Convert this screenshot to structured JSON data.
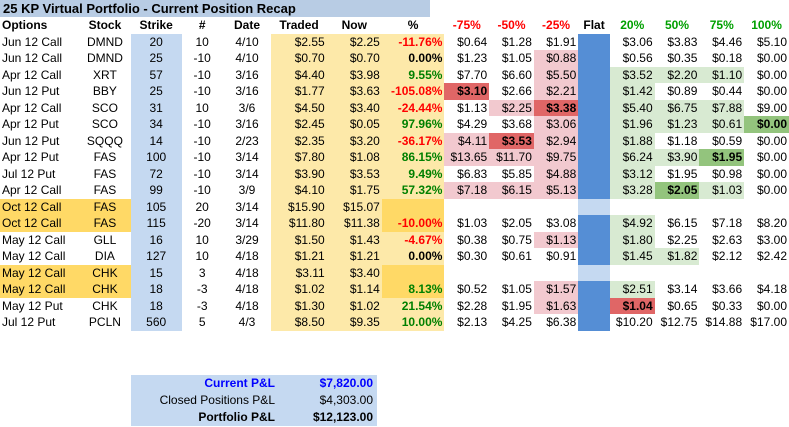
{
  "title": "25 KP Virtual Portfolio - Current Position Recap",
  "headers": [
    "Options",
    "Stock",
    "Strike",
    "#",
    "Date",
    "Traded",
    "Now",
    "%",
    "-75%",
    "-50%",
    "-25%",
    "Flat",
    "20%",
    "50%",
    "75%",
    "100%"
  ],
  "rows": [
    {
      "opt": "Jun 12 Call",
      "stock": "DMND",
      "strike": "20",
      "qty": "10",
      "date": "4/10",
      "traded": "$2.55",
      "now": "$2.25",
      "pct": "-11.76%",
      "m75": "$0.64",
      "m50": "$1.28",
      "m25": "$1.91",
      "p20": "$3.06",
      "p50": "$3.83",
      "p75": "$4.46",
      "p100": "$5.10"
    },
    {
      "opt": "Jun 12 Call",
      "stock": "DMND",
      "strike": "25",
      "qty": "-10",
      "date": "4/10",
      "traded": "$0.70",
      "now": "$0.70",
      "pct": "0.00%",
      "m75": "$1.23",
      "m50": "$1.05",
      "m25": "$0.88",
      "p20": "$0.56",
      "p50": "$0.35",
      "p75": "$0.18",
      "p100": "$0.00"
    },
    {
      "opt": "Apr 12 Call",
      "stock": "XRT",
      "strike": "57",
      "qty": "-10",
      "date": "3/16",
      "traded": "$4.40",
      "now": "$3.98",
      "pct": "9.55%",
      "m75": "$7.70",
      "m50": "$6.60",
      "m25": "$5.50",
      "p20": "$3.52",
      "p50": "$2.20",
      "p75": "$1.10",
      "p100": "$0.00"
    },
    {
      "opt": "Jun 12 Put",
      "stock": "BBY",
      "strike": "25",
      "qty": "-10",
      "date": "3/16",
      "traded": "$1.77",
      "now": "$3.63",
      "pct": "-105.08%",
      "m75": "$3.10",
      "m50": "$2.66",
      "m25": "$2.21",
      "p20": "$1.42",
      "p50": "$0.89",
      "p75": "$0.44",
      "p100": "$0.00"
    },
    {
      "opt": "Apr 12 Call",
      "stock": "SCO",
      "strike": "31",
      "qty": "10",
      "date": "3/6",
      "traded": "$4.50",
      "now": "$3.40",
      "pct": "-24.44%",
      "m75": "$1.13",
      "m50": "$2.25",
      "m25": "$3.38",
      "p20": "$5.40",
      "p50": "$6.75",
      "p75": "$7.88",
      "p100": "$9.00"
    },
    {
      "opt": "Apr 12 Put",
      "stock": "SCO",
      "strike": "34",
      "qty": "-10",
      "date": "3/16",
      "traded": "$2.45",
      "now": "$0.05",
      "pct": "97.96%",
      "m75": "$4.29",
      "m50": "$3.68",
      "m25": "$3.06",
      "p20": "$1.96",
      "p50": "$1.23",
      "p75": "$0.61",
      "p100": "$0.00"
    },
    {
      "opt": "Jun 12 Put",
      "stock": "SQQQ",
      "strike": "14",
      "qty": "-10",
      "date": "2/23",
      "traded": "$2.35",
      "now": "$3.20",
      "pct": "-36.17%",
      "m75": "$4.11",
      "m50": "$3.53",
      "m25": "$2.94",
      "p20": "$1.88",
      "p50": "$1.18",
      "p75": "$0.59",
      "p100": "$0.00"
    },
    {
      "opt": "Apr 12 Put",
      "stock": "FAS",
      "strike": "100",
      "qty": "-10",
      "date": "3/14",
      "traded": "$7.80",
      "now": "$1.08",
      "pct": "86.15%",
      "m75": "$13.65",
      "m50": "$11.70",
      "m25": "$9.75",
      "p20": "$6.24",
      "p50": "$3.90",
      "p75": "$1.95",
      "p100": "$0.00"
    },
    {
      "opt": "Jul 12 Put",
      "stock": "FAS",
      "strike": "72",
      "qty": "-10",
      "date": "3/14",
      "traded": "$3.90",
      "now": "$3.53",
      "pct": "9.49%",
      "m75": "$6.83",
      "m50": "$5.85",
      "m25": "$4.88",
      "p20": "$3.12",
      "p50": "$1.95",
      "p75": "$0.98",
      "p100": "$0.00"
    },
    {
      "opt": "Apr 12 Call",
      "stock": "FAS",
      "strike": "99",
      "qty": "-10",
      "date": "3/9",
      "traded": "$4.10",
      "now": "$1.75",
      "pct": "57.32%",
      "m75": "$7.18",
      "m50": "$6.15",
      "m25": "$5.13",
      "p20": "$3.28",
      "p50": "$2.05",
      "p75": "$1.03",
      "p100": "$0.00"
    },
    {
      "opt": "Oct 12 Call",
      "stock": "FAS",
      "strike": "105",
      "qty": "20",
      "date": "3/14",
      "traded": "$15.90",
      "now": "$15.07",
      "pct": "",
      "m75": "",
      "m50": "",
      "m25": "",
      "p20": "",
      "p50": "",
      "p75": "",
      "p100": ""
    },
    {
      "opt": "Oct 12 Call",
      "stock": "FAS",
      "strike": "115",
      "qty": "-20",
      "date": "3/14",
      "traded": "$11.80",
      "now": "$11.38",
      "pct": "-10.00%",
      "m75": "$1.03",
      "m50": "$2.05",
      "m25": "$3.08",
      "p20": "$4.92",
      "p50": "$6.15",
      "p75": "$7.18",
      "p100": "$8.20"
    },
    {
      "opt": "May 12 Call",
      "stock": "GLL",
      "strike": "16",
      "qty": "10",
      "date": "3/29",
      "traded": "$1.50",
      "now": "$1.43",
      "pct": "-4.67%",
      "m75": "$0.38",
      "m50": "$0.75",
      "m25": "$1.13",
      "p20": "$1.80",
      "p50": "$2.25",
      "p75": "$2.63",
      "p100": "$3.00"
    },
    {
      "opt": "May 12 Call",
      "stock": "DIA",
      "strike": "127",
      "qty": "10",
      "date": "4/18",
      "traded": "$1.21",
      "now": "$1.21",
      "pct": "0.00%",
      "m75": "$0.30",
      "m50": "$0.61",
      "m25": "$0.91",
      "p20": "$1.45",
      "p50": "$1.82",
      "p75": "$2.12",
      "p100": "$2.42"
    },
    {
      "opt": "May 12 Call",
      "stock": "CHK",
      "strike": "15",
      "qty": "3",
      "date": "4/18",
      "traded": "$3.11",
      "now": "$3.40",
      "pct": "",
      "m75": "",
      "m50": "",
      "m25": "",
      "p20": "",
      "p50": "",
      "p75": "",
      "p100": ""
    },
    {
      "opt": "May 12 Call",
      "stock": "CHK",
      "strike": "18",
      "qty": "-3",
      "date": "4/18",
      "traded": "$1.02",
      "now": "$1.14",
      "pct": "8.13%",
      "m75": "$0.52",
      "m50": "$1.05",
      "m25": "$1.57",
      "p20": "$2.51",
      "p50": "$3.14",
      "p75": "$3.66",
      "p100": "$4.18"
    },
    {
      "opt": "May 12 Put",
      "stock": "CHK",
      "strike": "18",
      "qty": "-3",
      "date": "4/18",
      "traded": "$1.30",
      "now": "$1.02",
      "pct": "21.54%",
      "m75": "$2.28",
      "m50": "$1.95",
      "m25": "$1.63",
      "p20": "$1.04",
      "p50": "$0.65",
      "p75": "$0.33",
      "p100": "$0.00"
    },
    {
      "opt": "Jul 12 Put",
      "stock": "PCLN",
      "strike": "560",
      "qty": "5",
      "date": "4/3",
      "traded": "$8.50",
      "now": "$9.35",
      "pct": "10.00%",
      "m75": "$2.13",
      "m50": "$4.25",
      "m25": "$6.38",
      "p20": "$10.20",
      "p50": "$12.75",
      "p75": "$14.88",
      "p100": "$17.00"
    }
  ],
  "summary": {
    "current_label": "Current P&L",
    "current_val": "$7,820.00",
    "closed_label": "Closed Positions P&L",
    "closed_val": "$4,303.00",
    "portfolio_label": "Portfolio P&L",
    "portfolio_val": "$12,123.00"
  },
  "colors": {
    "title_bg": "#b8cce4",
    "accent_blue": "#0000ff",
    "neg": "#ff0000",
    "pos": "#008000"
  }
}
